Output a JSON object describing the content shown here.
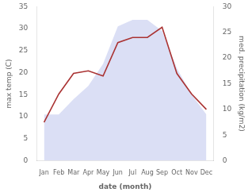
{
  "chart_data": {
    "type": "line",
    "categories": [
      "Jan",
      "Feb",
      "Mar",
      "Apr",
      "May",
      "Jun",
      "Jul",
      "Aug",
      "Sep",
      "Oct",
      "Nov",
      "Dec"
    ],
    "series": [
      {
        "type": "area",
        "color": "#c8cef0",
        "values": [
          10.5,
          10.5,
          14.0,
          17.0,
          22.0,
          30.5,
          32.0,
          32.0,
          29.5,
          21.0,
          15.0,
          10.5
        ]
      },
      {
        "type": "line",
        "color": "#aa3333",
        "axis": "y2",
        "values": [
          7.5,
          13.0,
          17.0,
          17.5,
          16.5,
          23.0,
          24.0,
          24.0,
          26.0,
          17.0,
          13.0,
          10.0
        ]
      }
    ],
    "xlabel": "date (month)",
    "ylabel": "max temp (C)",
    "y2label": "med. precipitation (kg/m2)",
    "ylim": [
      0,
      35
    ],
    "yticks": [
      0,
      5,
      10,
      15,
      20,
      25,
      30,
      35
    ],
    "y2lim": [
      0,
      30
    ],
    "y2ticks": [
      0,
      5,
      10,
      15,
      20,
      25,
      30
    ],
    "grid": false
  }
}
